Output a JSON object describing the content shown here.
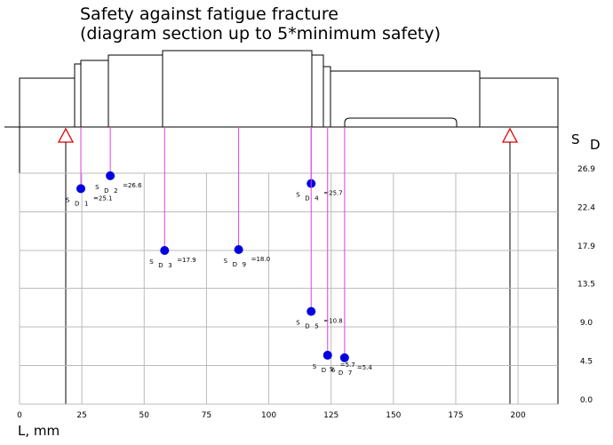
{
  "chart_data": {
    "type": "scatter",
    "title": "Safety against fatigue fracture",
    "subtitle": "(diagram section up to 5*minimum safety)",
    "x_label": "L, mm",
    "y_label": "S",
    "y_label_sub": "D",
    "point_label_prefix": "S",
    "point_label_sub": "D",
    "point_ids": [
      "1",
      "2",
      "3",
      "9",
      "4",
      "5",
      "6",
      "7"
    ],
    "x": [
      24.6,
      36.4,
      58.2,
      87.9,
      117,
      117,
      123.6,
      130.4
    ],
    "values": [
      25.1,
      26.6,
      17.9,
      18.0,
      25.7,
      10.8,
      5.7,
      5.4
    ],
    "value_labels": [
      "=25.1",
      "=26.6",
      "=17.9",
      "=18.0",
      "=25.7",
      "=10.8",
      "=5.7",
      "=5.4"
    ],
    "color": "#0000e0",
    "line_color": "#e040e0",
    "xlim": [
      0,
      216
    ],
    "ylim": [
      0,
      26.9
    ],
    "xticks": [
      0,
      25,
      50,
      75,
      100,
      125,
      150,
      175,
      200
    ],
    "yticks": [
      26.9,
      22.4,
      17.9,
      13.5,
      {
        "value": 9,
        "label": "9.0"
      },
      4.5,
      {
        "value": 0,
        "label": "0.0"
      }
    ],
    "grid": true
  }
}
